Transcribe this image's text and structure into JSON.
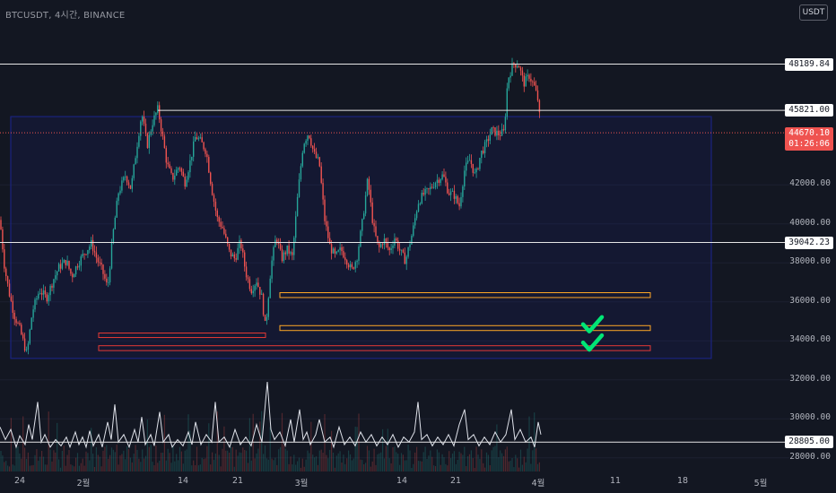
{
  "header": {
    "title": "BTCUSDT, 4시간, BINANCE",
    "currency": "USDT"
  },
  "price_labels": [
    {
      "id": "resistance-top",
      "value": "48189.84",
      "price": 48189.84
    },
    {
      "id": "resistance-mid",
      "value": "45821.00",
      "price": 45821.0
    },
    {
      "id": "support-level",
      "value": "39042.23",
      "price": 39042.23
    },
    {
      "id": "bottom-level",
      "value": "28805.00",
      "price": 28805.0
    }
  ],
  "current_price": {
    "value": "44670.10",
    "countdown": "01:26:06",
    "price": 44670.1
  },
  "colors": {
    "background": "#131722",
    "up": "#26a69a",
    "down": "#ef5350",
    "range_box": "#1a237e",
    "zone_orange": "#ffa726",
    "zone_red": "#e53935",
    "check": "#00e676"
  },
  "chart_data": {
    "type": "candlestick",
    "title": "",
    "symbol": "BTCUSDT",
    "interval": "4시간",
    "exchange": "BINANCE",
    "ylim": [
      27300,
      50100
    ],
    "y_ticks": [
      28000,
      30000,
      32000,
      34000,
      36000,
      38000,
      40000,
      42000
    ],
    "y_tick_labels": [
      "28000.00",
      "30000.00",
      "32000.00",
      "34000.00",
      "36000.00",
      "38000.00",
      "40000.00",
      "42000.00"
    ],
    "x_tick_labels": [
      "24",
      "2월",
      "14",
      "21",
      "3월",
      "14",
      "21",
      "4월",
      "11",
      "18",
      "5월"
    ],
    "price_path": [
      [
        0,
        40200
      ],
      [
        5,
        37800
      ],
      [
        10,
        36500
      ],
      [
        16,
        35300
      ],
      [
        22,
        34600
      ],
      [
        30,
        33300
      ],
      [
        36,
        35500
      ],
      [
        44,
        36600
      ],
      [
        52,
        36200
      ],
      [
        60,
        37200
      ],
      [
        66,
        37800
      ],
      [
        74,
        38100
      ],
      [
        80,
        37300
      ],
      [
        86,
        37900
      ],
      [
        94,
        38500
      ],
      [
        102,
        39000
      ],
      [
        108,
        38200
      ],
      [
        114,
        37600
      ],
      [
        120,
        36700
      ],
      [
        126,
        39500
      ],
      [
        132,
        41600
      ],
      [
        140,
        42500
      ],
      [
        146,
        41800
      ],
      [
        152,
        43800
      ],
      [
        158,
        45700
      ],
      [
        164,
        44000
      ],
      [
        170,
        45200
      ],
      [
        176,
        45900
      ],
      [
        180,
        44800
      ],
      [
        186,
        43100
      ],
      [
        192,
        42300
      ],
      [
        200,
        43000
      ],
      [
        206,
        42100
      ],
      [
        212,
        43200
      ],
      [
        218,
        44500
      ],
      [
        224,
        44200
      ],
      [
        230,
        43700
      ],
      [
        236,
        41800
      ],
      [
        242,
        40300
      ],
      [
        248,
        39800
      ],
      [
        256,
        38500
      ],
      [
        262,
        38200
      ],
      [
        268,
        39100
      ],
      [
        274,
        37500
      ],
      [
        280,
        36600
      ],
      [
        286,
        37100
      ],
      [
        292,
        36200
      ],
      [
        296,
        34600
      ],
      [
        302,
        37800
      ],
      [
        308,
        39400
      ],
      [
        314,
        38200
      ],
      [
        320,
        38700
      ],
      [
        326,
        38300
      ],
      [
        332,
        41500
      ],
      [
        338,
        44100
      ],
      [
        344,
        44700
      ],
      [
        350,
        43600
      ],
      [
        356,
        43100
      ],
      [
        362,
        40200
      ],
      [
        368,
        38800
      ],
      [
        374,
        38300
      ],
      [
        380,
        38700
      ],
      [
        386,
        38200
      ],
      [
        392,
        37600
      ],
      [
        398,
        38300
      ],
      [
        404,
        40100
      ],
      [
        410,
        42300
      ],
      [
        416,
        39900
      ],
      [
        422,
        38700
      ],
      [
        428,
        39200
      ],
      [
        434,
        38600
      ],
      [
        440,
        39300
      ],
      [
        446,
        38600
      ],
      [
        452,
        38100
      ],
      [
        460,
        39600
      ],
      [
        466,
        41100
      ],
      [
        472,
        41500
      ],
      [
        478,
        41700
      ],
      [
        486,
        42200
      ],
      [
        494,
        42500
      ],
      [
        500,
        41600
      ],
      [
        506,
        41500
      ],
      [
        512,
        40900
      ],
      [
        518,
        42800
      ],
      [
        524,
        43300
      ],
      [
        530,
        42400
      ],
      [
        536,
        43600
      ],
      [
        542,
        44100
      ],
      [
        548,
        44800
      ],
      [
        556,
        44600
      ],
      [
        562,
        44700
      ],
      [
        566,
        47400
      ],
      [
        572,
        48200
      ],
      [
        578,
        48200
      ],
      [
        584,
        47200
      ],
      [
        590,
        47600
      ],
      [
        596,
        47000
      ],
      [
        600,
        46300
      ],
      [
        603,
        44670
      ]
    ],
    "indicator_path": [
      [
        0,
        24
      ],
      [
        6,
        14
      ],
      [
        12,
        22
      ],
      [
        18,
        8
      ],
      [
        22,
        17
      ],
      [
        28,
        10
      ],
      [
        32,
        26
      ],
      [
        36,
        14
      ],
      [
        42,
        44
      ],
      [
        46,
        12
      ],
      [
        50,
        18
      ],
      [
        56,
        8
      ],
      [
        62,
        14
      ],
      [
        68,
        9
      ],
      [
        74,
        16
      ],
      [
        78,
        8
      ],
      [
        84,
        20
      ],
      [
        88,
        10
      ],
      [
        92,
        16
      ],
      [
        96,
        8
      ],
      [
        100,
        21
      ],
      [
        104,
        9
      ],
      [
        110,
        18
      ],
      [
        114,
        8
      ],
      [
        120,
        28
      ],
      [
        124,
        14
      ],
      [
        128,
        42
      ],
      [
        132,
        12
      ],
      [
        138,
        18
      ],
      [
        144,
        8
      ],
      [
        150,
        22
      ],
      [
        154,
        12
      ],
      [
        158,
        32
      ],
      [
        162,
        10
      ],
      [
        168,
        18
      ],
      [
        172,
        9
      ],
      [
        178,
        36
      ],
      [
        182,
        12
      ],
      [
        188,
        18
      ],
      [
        192,
        8
      ],
      [
        198,
        14
      ],
      [
        204,
        9
      ],
      [
        210,
        20
      ],
      [
        214,
        10
      ],
      [
        218,
        28
      ],
      [
        224,
        10
      ],
      [
        230,
        18
      ],
      [
        236,
        12
      ],
      [
        240,
        44
      ],
      [
        244,
        12
      ],
      [
        250,
        16
      ],
      [
        256,
        8
      ],
      [
        262,
        22
      ],
      [
        268,
        10
      ],
      [
        274,
        16
      ],
      [
        280,
        9
      ],
      [
        286,
        26
      ],
      [
        292,
        12
      ],
      [
        298,
        60
      ],
      [
        302,
        22
      ],
      [
        306,
        14
      ],
      [
        312,
        20
      ],
      [
        318,
        9
      ],
      [
        324,
        30
      ],
      [
        328,
        12
      ],
      [
        334,
        38
      ],
      [
        338,
        14
      ],
      [
        342,
        20
      ],
      [
        346,
        10
      ],
      [
        352,
        18
      ],
      [
        356,
        30
      ],
      [
        362,
        12
      ],
      [
        368,
        16
      ],
      [
        372,
        8
      ],
      [
        378,
        24
      ],
      [
        384,
        10
      ],
      [
        390,
        16
      ],
      [
        396,
        9
      ],
      [
        402,
        20
      ],
      [
        408,
        12
      ],
      [
        414,
        18
      ],
      [
        420,
        9
      ],
      [
        426,
        16
      ],
      [
        432,
        10
      ],
      [
        438,
        18
      ],
      [
        444,
        8
      ],
      [
        450,
        16
      ],
      [
        456,
        12
      ],
      [
        462,
        20
      ],
      [
        466,
        44
      ],
      [
        470,
        14
      ],
      [
        476,
        18
      ],
      [
        482,
        9
      ],
      [
        488,
        16
      ],
      [
        494,
        10
      ],
      [
        500,
        18
      ],
      [
        506,
        9
      ],
      [
        512,
        26
      ],
      [
        518,
        38
      ],
      [
        522,
        14
      ],
      [
        528,
        18
      ],
      [
        534,
        9
      ],
      [
        540,
        16
      ],
      [
        546,
        10
      ],
      [
        552,
        20
      ],
      [
        558,
        12
      ],
      [
        564,
        18
      ],
      [
        570,
        38
      ],
      [
        574,
        14
      ],
      [
        580,
        22
      ],
      [
        586,
        12
      ],
      [
        592,
        16
      ],
      [
        596,
        8
      ],
      [
        600,
        28
      ],
      [
        603,
        18
      ]
    ],
    "range_box": {
      "x0": 12,
      "x1": 793,
      "price_top": 45500,
      "price_bottom": 33100
    },
    "zones": [
      {
        "kind": "orange",
        "x0": 312,
        "x1": 725,
        "price_top": 36470,
        "price_bottom": 36220
      },
      {
        "kind": "orange",
        "x0": 312,
        "x1": 725,
        "price_top": 34780,
        "price_bottom": 34530
      },
      {
        "kind": "red",
        "x0": 110,
        "x1": 296,
        "price_top": 34400,
        "price_bottom": 34180
      },
      {
        "kind": "red",
        "x0": 110,
        "x1": 725,
        "price_top": 33750,
        "price_bottom": 33500
      }
    ],
    "checkmarks": [
      {
        "x": 660,
        "price": 34760
      },
      {
        "x": 660,
        "price": 33820
      }
    ]
  }
}
